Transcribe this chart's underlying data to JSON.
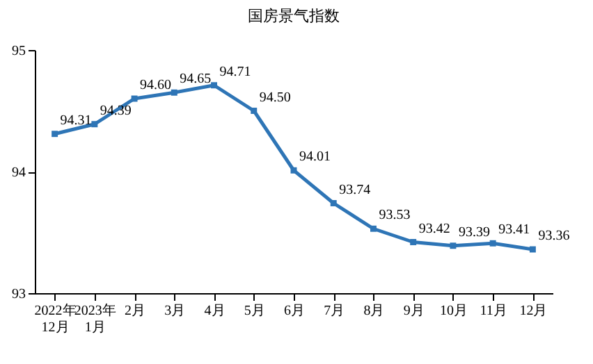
{
  "chart_data": {
    "type": "line",
    "title": "国房景气指数",
    "categories": [
      "2022年\n12月",
      "2023年\n1月",
      "2月",
      "3月",
      "4月",
      "5月",
      "6月",
      "7月",
      "8月",
      "9月",
      "10月",
      "11月",
      "12月"
    ],
    "series": [
      {
        "color": "#2e75b6",
        "values": [
          94.31,
          94.39,
          94.6,
          94.65,
          94.71,
          94.5,
          94.01,
          93.74,
          93.53,
          93.42,
          93.39,
          93.41,
          93.36
        ],
        "value_labels": [
          "94.31",
          "94.39",
          "94.60",
          "94.65",
          "94.71",
          "94.50",
          "94.01",
          "93.74",
          "93.53",
          "93.42",
          "93.39",
          "93.41",
          "93.36"
        ]
      }
    ],
    "ylim": [
      93,
      95
    ],
    "yticks": [
      93,
      94,
      95
    ],
    "grid": false,
    "marker": "square",
    "line_style": "solid"
  }
}
